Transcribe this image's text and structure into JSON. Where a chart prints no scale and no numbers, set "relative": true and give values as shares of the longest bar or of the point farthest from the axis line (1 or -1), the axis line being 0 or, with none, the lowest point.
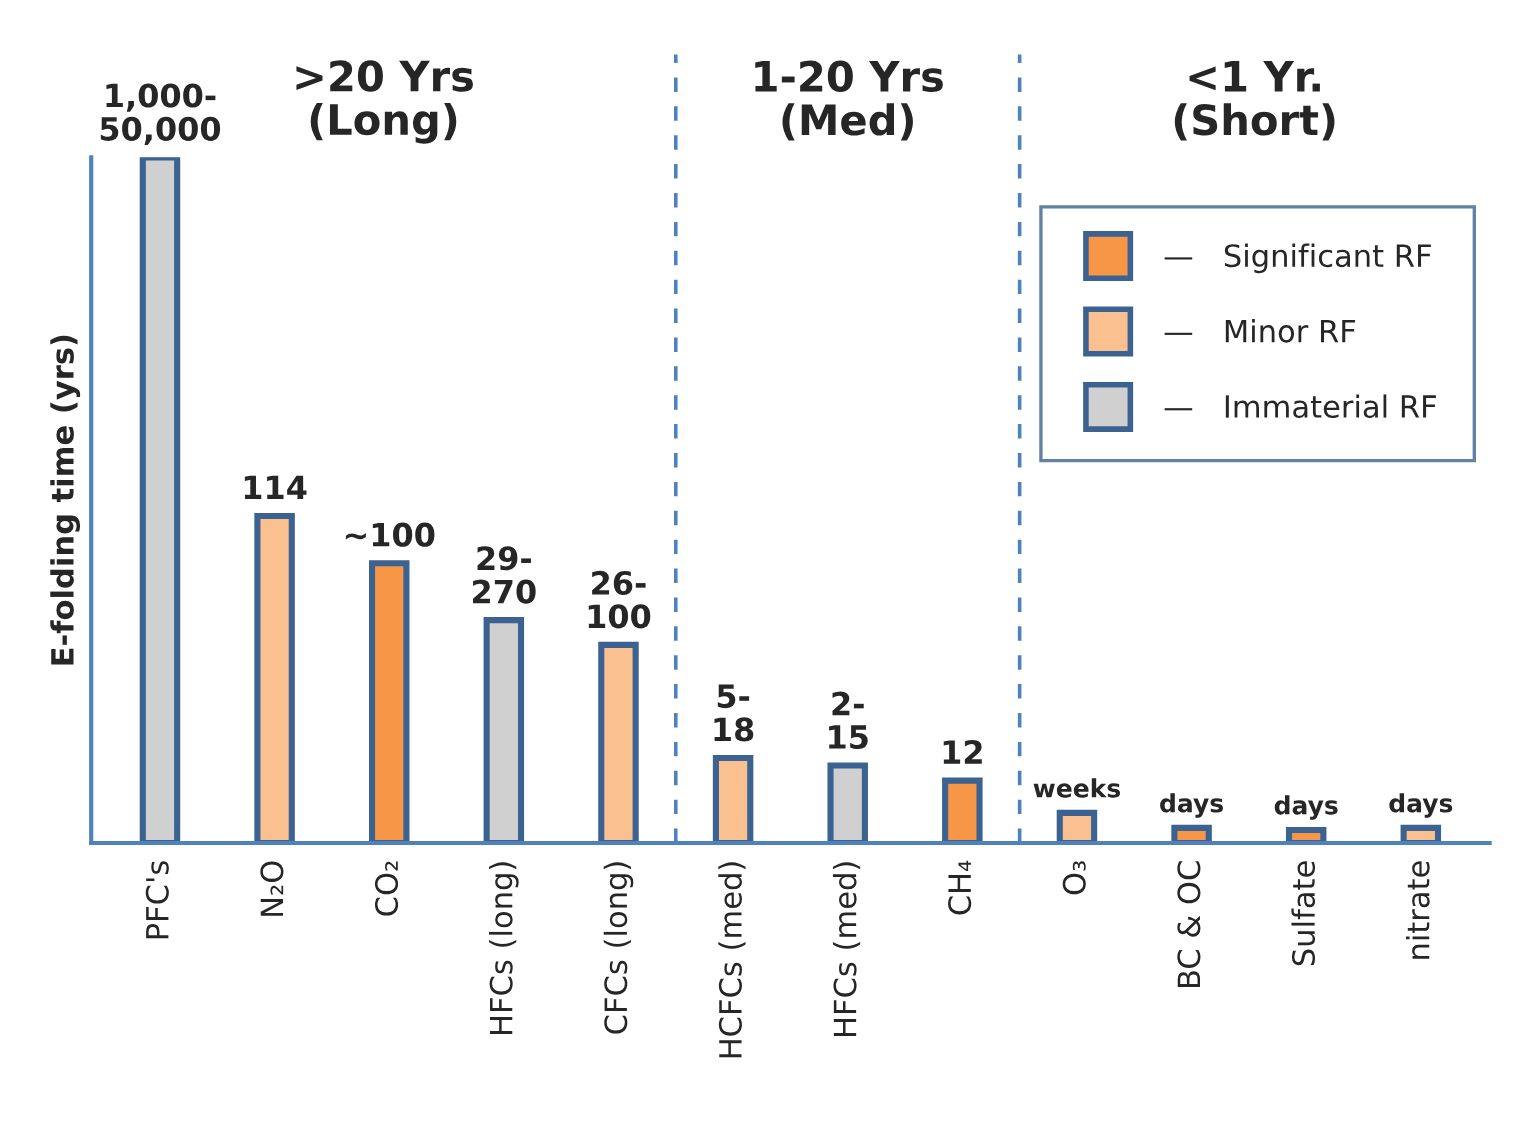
{
  "chart_data": {
    "type": "bar",
    "relative": true,
    "ylabel": "E-folding time (yrs)",
    "categories": [
      "PFC's",
      "N₂O",
      "CO₂",
      "HFCs (long)",
      "CFCs (long)",
      "HCFCs (med)",
      "HFCs (med)",
      "CH₄",
      "O₃",
      "BC & OC",
      "Sulfate",
      "nitrate"
    ],
    "series": [
      {
        "name": "—   Significant RF",
        "color": "#f79646",
        "values": [
          null,
          null,
          0.408,
          null,
          null,
          null,
          null,
          0.091,
          null,
          0.022,
          0.019,
          null
        ]
      },
      {
        "name": "—   Minor RF",
        "color": "#fac090",
        "values": [
          null,
          0.477,
          null,
          null,
          0.289,
          0.124,
          null,
          null,
          0.044,
          null,
          null,
          0.022
        ]
      },
      {
        "name": "—   Immaterial RF",
        "color": "#d0d0d0",
        "values": [
          1,
          null,
          null,
          0.325,
          null,
          null,
          0.113,
          null,
          null,
          null,
          null,
          null
        ]
      }
    ],
    "value_labels": [
      "1,000-\n50,000",
      "114",
      "~100",
      "29-\n270",
      "26-\n100",
      "5-\n18",
      "2-\n15",
      "12",
      "weeks",
      "days",
      "days",
      "days"
    ],
    "annotations": [
      ">20 Yrs\n(Long)",
      "1-20 Yrs\n(Med)",
      "<1 Yr.\n(Short)"
    ],
    "legend": "top right",
    "grid": false,
    "tick_labels": "x"
  }
}
